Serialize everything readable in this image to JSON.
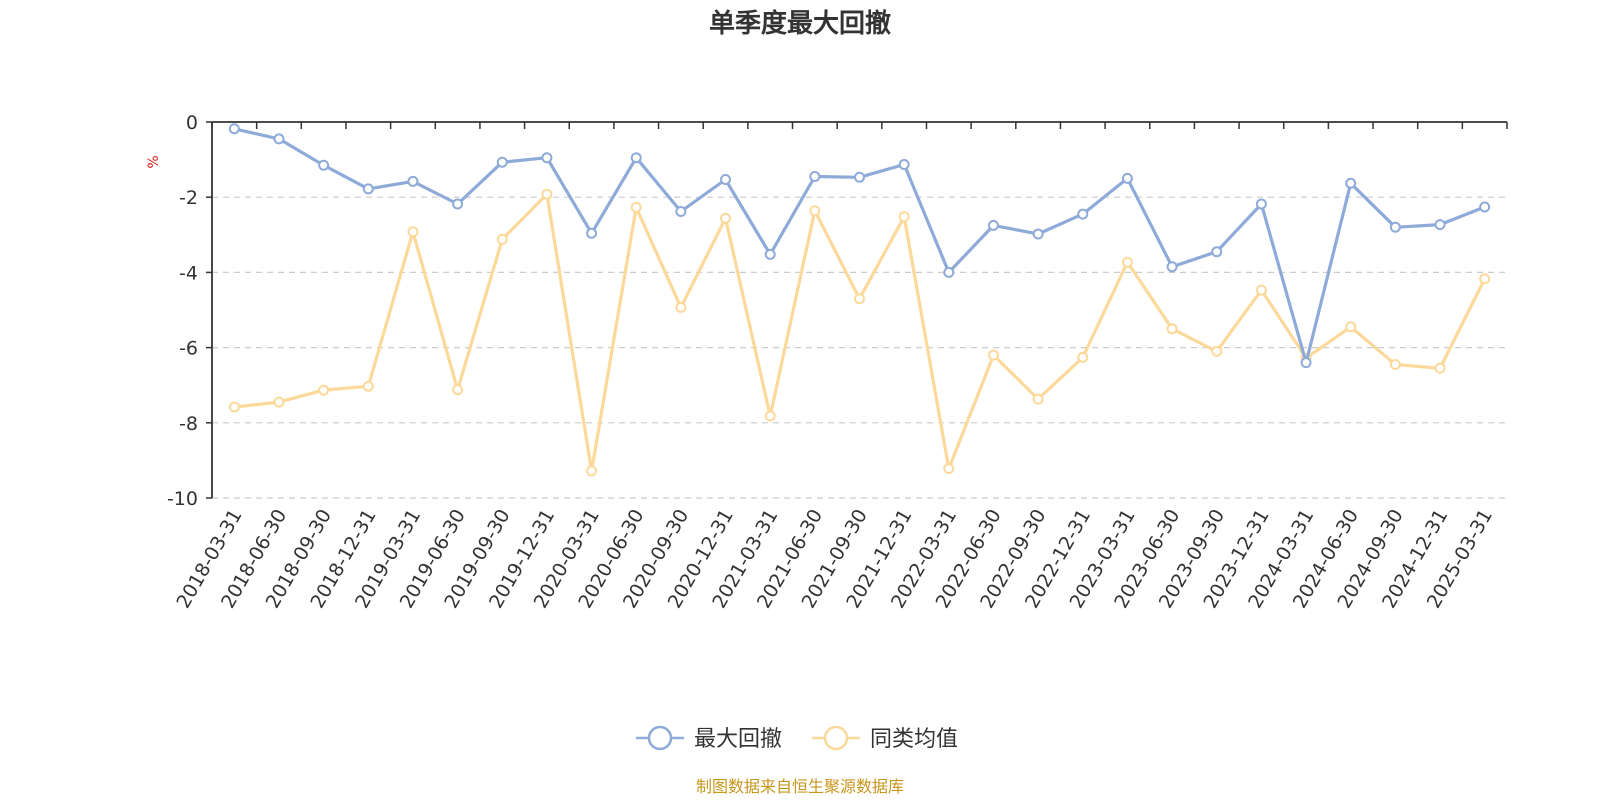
{
  "chart_data": {
    "type": "line",
    "title": "单季度最大回撤",
    "ylabel": "%",
    "ylim": [
      -10,
      0
    ],
    "yticks": [
      0,
      -2,
      -4,
      -6,
      -8,
      -10
    ],
    "grid": true,
    "legend_position": "bottom",
    "categories": [
      "2018-03-31",
      "2018-06-30",
      "2018-09-30",
      "2018-12-31",
      "2019-03-31",
      "2019-06-30",
      "2019-09-30",
      "2019-12-31",
      "2020-03-31",
      "2020-06-30",
      "2020-09-30",
      "2020-12-31",
      "2021-03-31",
      "2021-06-30",
      "2021-09-30",
      "2021-12-31",
      "2022-03-31",
      "2022-06-30",
      "2022-09-30",
      "2022-12-31",
      "2023-03-31",
      "2023-06-30",
      "2023-09-30",
      "2023-12-31",
      "2024-03-31",
      "2024-06-30",
      "2024-09-30",
      "2024-12-31",
      "2025-03-31"
    ],
    "series": [
      {
        "name": "最大回撤",
        "color": "#8eaad8",
        "values": [
          -0.18,
          -0.45,
          -1.15,
          -1.78,
          -1.58,
          -2.18,
          -1.07,
          -0.95,
          -2.96,
          -0.95,
          -2.38,
          -1.53,
          -3.52,
          -1.45,
          -1.47,
          -1.13,
          -4.0,
          -2.75,
          -2.98,
          -2.45,
          -1.5,
          -3.85,
          -3.45,
          -2.18,
          -6.4,
          -1.63,
          -2.8,
          -2.73,
          -2.26
        ]
      },
      {
        "name": "同类均值",
        "color": "#fcd99a",
        "values": [
          -7.58,
          -7.45,
          -7.13,
          -7.03,
          -2.92,
          -7.12,
          -3.12,
          -1.92,
          -9.28,
          -2.27,
          -4.93,
          -2.56,
          -7.82,
          -2.36,
          -4.7,
          -2.52,
          -9.22,
          -6.2,
          -7.37,
          -6.26,
          -3.73,
          -5.5,
          -6.1,
          -4.47,
          -6.28,
          -5.45,
          -6.45,
          -6.55,
          -4.17
        ]
      }
    ]
  },
  "source_note": "制图数据来自恒生聚源数据库"
}
